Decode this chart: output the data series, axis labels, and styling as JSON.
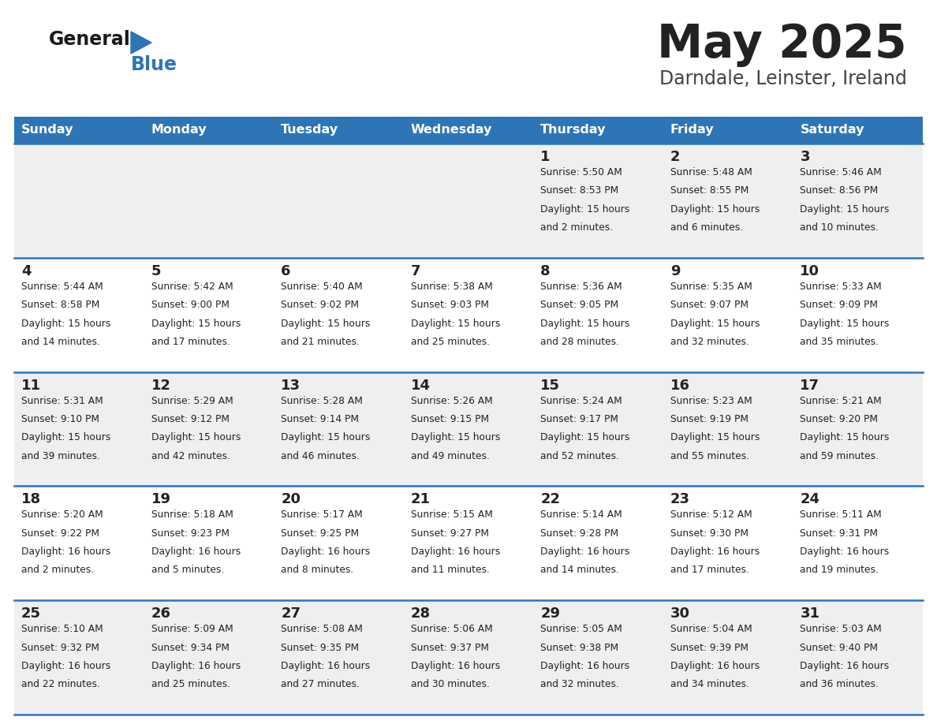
{
  "title": "May 2025",
  "subtitle": "Darndale, Leinster, Ireland",
  "days_of_week": [
    "Sunday",
    "Monday",
    "Tuesday",
    "Wednesday",
    "Thursday",
    "Friday",
    "Saturday"
  ],
  "header_bg": "#2E75B6",
  "header_text": "#FFFFFF",
  "row_bg_odd": "#EFEFEF",
  "row_bg_even": "#FFFFFF",
  "row_separator": "#2E75B6",
  "cell_text": "#222222",
  "title_color": "#222222",
  "subtitle_color": "#444444",
  "logo_general_color": "#1a1a1a",
  "logo_blue_color": "#2E75B6",
  "calendar": [
    [
      null,
      null,
      null,
      null,
      {
        "day": 1,
        "sunrise": "5:50 AM",
        "sunset": "8:53 PM",
        "daylight": "15 hours\nand 2 minutes."
      },
      {
        "day": 2,
        "sunrise": "5:48 AM",
        "sunset": "8:55 PM",
        "daylight": "15 hours\nand 6 minutes."
      },
      {
        "day": 3,
        "sunrise": "5:46 AM",
        "sunset": "8:56 PM",
        "daylight": "15 hours\nand 10 minutes."
      }
    ],
    [
      {
        "day": 4,
        "sunrise": "5:44 AM",
        "sunset": "8:58 PM",
        "daylight": "15 hours\nand 14 minutes."
      },
      {
        "day": 5,
        "sunrise": "5:42 AM",
        "sunset": "9:00 PM",
        "daylight": "15 hours\nand 17 minutes."
      },
      {
        "day": 6,
        "sunrise": "5:40 AM",
        "sunset": "9:02 PM",
        "daylight": "15 hours\nand 21 minutes."
      },
      {
        "day": 7,
        "sunrise": "5:38 AM",
        "sunset": "9:03 PM",
        "daylight": "15 hours\nand 25 minutes."
      },
      {
        "day": 8,
        "sunrise": "5:36 AM",
        "sunset": "9:05 PM",
        "daylight": "15 hours\nand 28 minutes."
      },
      {
        "day": 9,
        "sunrise": "5:35 AM",
        "sunset": "9:07 PM",
        "daylight": "15 hours\nand 32 minutes."
      },
      {
        "day": 10,
        "sunrise": "5:33 AM",
        "sunset": "9:09 PM",
        "daylight": "15 hours\nand 35 minutes."
      }
    ],
    [
      {
        "day": 11,
        "sunrise": "5:31 AM",
        "sunset": "9:10 PM",
        "daylight": "15 hours\nand 39 minutes."
      },
      {
        "day": 12,
        "sunrise": "5:29 AM",
        "sunset": "9:12 PM",
        "daylight": "15 hours\nand 42 minutes."
      },
      {
        "day": 13,
        "sunrise": "5:28 AM",
        "sunset": "9:14 PM",
        "daylight": "15 hours\nand 46 minutes."
      },
      {
        "day": 14,
        "sunrise": "5:26 AM",
        "sunset": "9:15 PM",
        "daylight": "15 hours\nand 49 minutes."
      },
      {
        "day": 15,
        "sunrise": "5:24 AM",
        "sunset": "9:17 PM",
        "daylight": "15 hours\nand 52 minutes."
      },
      {
        "day": 16,
        "sunrise": "5:23 AM",
        "sunset": "9:19 PM",
        "daylight": "15 hours\nand 55 minutes."
      },
      {
        "day": 17,
        "sunrise": "5:21 AM",
        "sunset": "9:20 PM",
        "daylight": "15 hours\nand 59 minutes."
      }
    ],
    [
      {
        "day": 18,
        "sunrise": "5:20 AM",
        "sunset": "9:22 PM",
        "daylight": "16 hours\nand 2 minutes."
      },
      {
        "day": 19,
        "sunrise": "5:18 AM",
        "sunset": "9:23 PM",
        "daylight": "16 hours\nand 5 minutes."
      },
      {
        "day": 20,
        "sunrise": "5:17 AM",
        "sunset": "9:25 PM",
        "daylight": "16 hours\nand 8 minutes."
      },
      {
        "day": 21,
        "sunrise": "5:15 AM",
        "sunset": "9:27 PM",
        "daylight": "16 hours\nand 11 minutes."
      },
      {
        "day": 22,
        "sunrise": "5:14 AM",
        "sunset": "9:28 PM",
        "daylight": "16 hours\nand 14 minutes."
      },
      {
        "day": 23,
        "sunrise": "5:12 AM",
        "sunset": "9:30 PM",
        "daylight": "16 hours\nand 17 minutes."
      },
      {
        "day": 24,
        "sunrise": "5:11 AM",
        "sunset": "9:31 PM",
        "daylight": "16 hours\nand 19 minutes."
      }
    ],
    [
      {
        "day": 25,
        "sunrise": "5:10 AM",
        "sunset": "9:32 PM",
        "daylight": "16 hours\nand 22 minutes."
      },
      {
        "day": 26,
        "sunrise": "5:09 AM",
        "sunset": "9:34 PM",
        "daylight": "16 hours\nand 25 minutes."
      },
      {
        "day": 27,
        "sunrise": "5:08 AM",
        "sunset": "9:35 PM",
        "daylight": "16 hours\nand 27 minutes."
      },
      {
        "day": 28,
        "sunrise": "5:06 AM",
        "sunset": "9:37 PM",
        "daylight": "16 hours\nand 30 minutes."
      },
      {
        "day": 29,
        "sunrise": "5:05 AM",
        "sunset": "9:38 PM",
        "daylight": "16 hours\nand 32 minutes."
      },
      {
        "day": 30,
        "sunrise": "5:04 AM",
        "sunset": "9:39 PM",
        "daylight": "16 hours\nand 34 minutes."
      },
      {
        "day": 31,
        "sunrise": "5:03 AM",
        "sunset": "9:40 PM",
        "daylight": "16 hours\nand 36 minutes."
      }
    ]
  ]
}
